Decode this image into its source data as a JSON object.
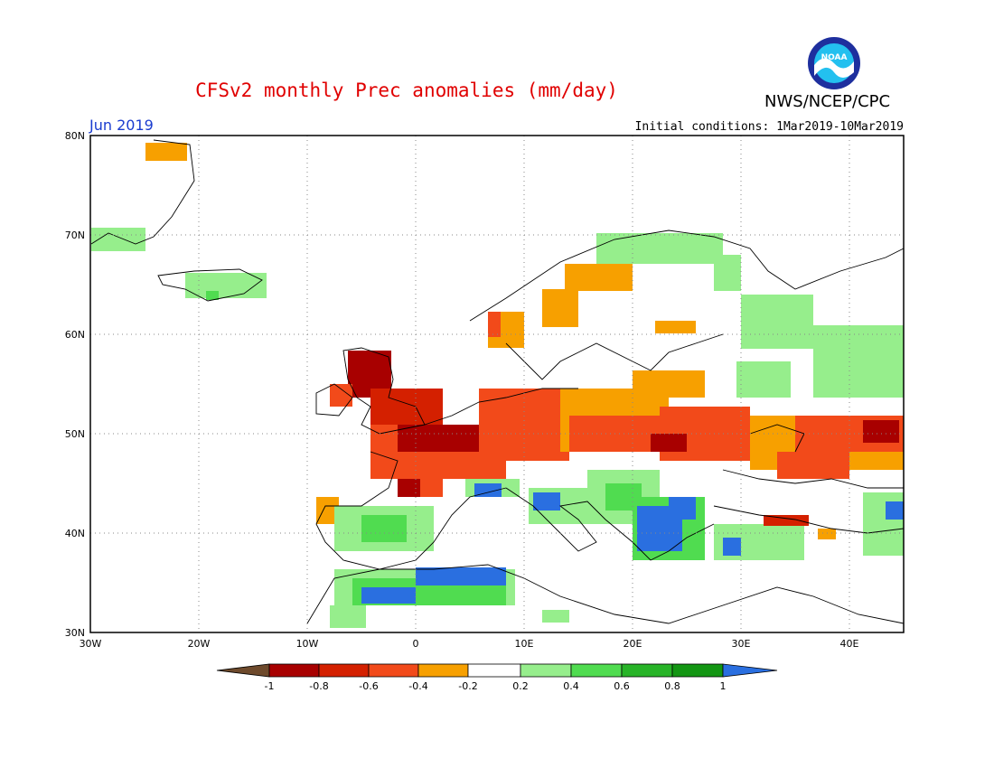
{
  "header": {
    "title": "CFSv2 monthly Prec anomalies (mm/day)",
    "agency": "NWS/NCEP/CPC",
    "month": "Jun 2019",
    "initial_conditions": "Initial conditions: 1Mar2019-10Mar2019"
  },
  "logo": {
    "text": "NOAA",
    "icon": "noaa-logo-icon"
  },
  "axes": {
    "x_ticks": [
      "30W",
      "20W",
      "10W",
      "0",
      "10E",
      "20E",
      "30E",
      "40E"
    ],
    "y_ticks": [
      "80N",
      "70N",
      "60N",
      "50N",
      "40N",
      "30N"
    ],
    "lon_range": [
      -30,
      45
    ],
    "lat_range": [
      30,
      80
    ]
  },
  "legend": {
    "labels": [
      "-1",
      "-0.8",
      "-0.6",
      "-0.4",
      "-0.2",
      "0.2",
      "0.4",
      "0.6",
      "0.8",
      "1"
    ],
    "colors": [
      "#6e4a2c",
      "#a80000",
      "#d42000",
      "#f24a1a",
      "#f7a000",
      "#ffffff",
      "#96ee8c",
      "#50dc50",
      "#28b428",
      "#139613",
      "#2a6fe0"
    ]
  }
}
